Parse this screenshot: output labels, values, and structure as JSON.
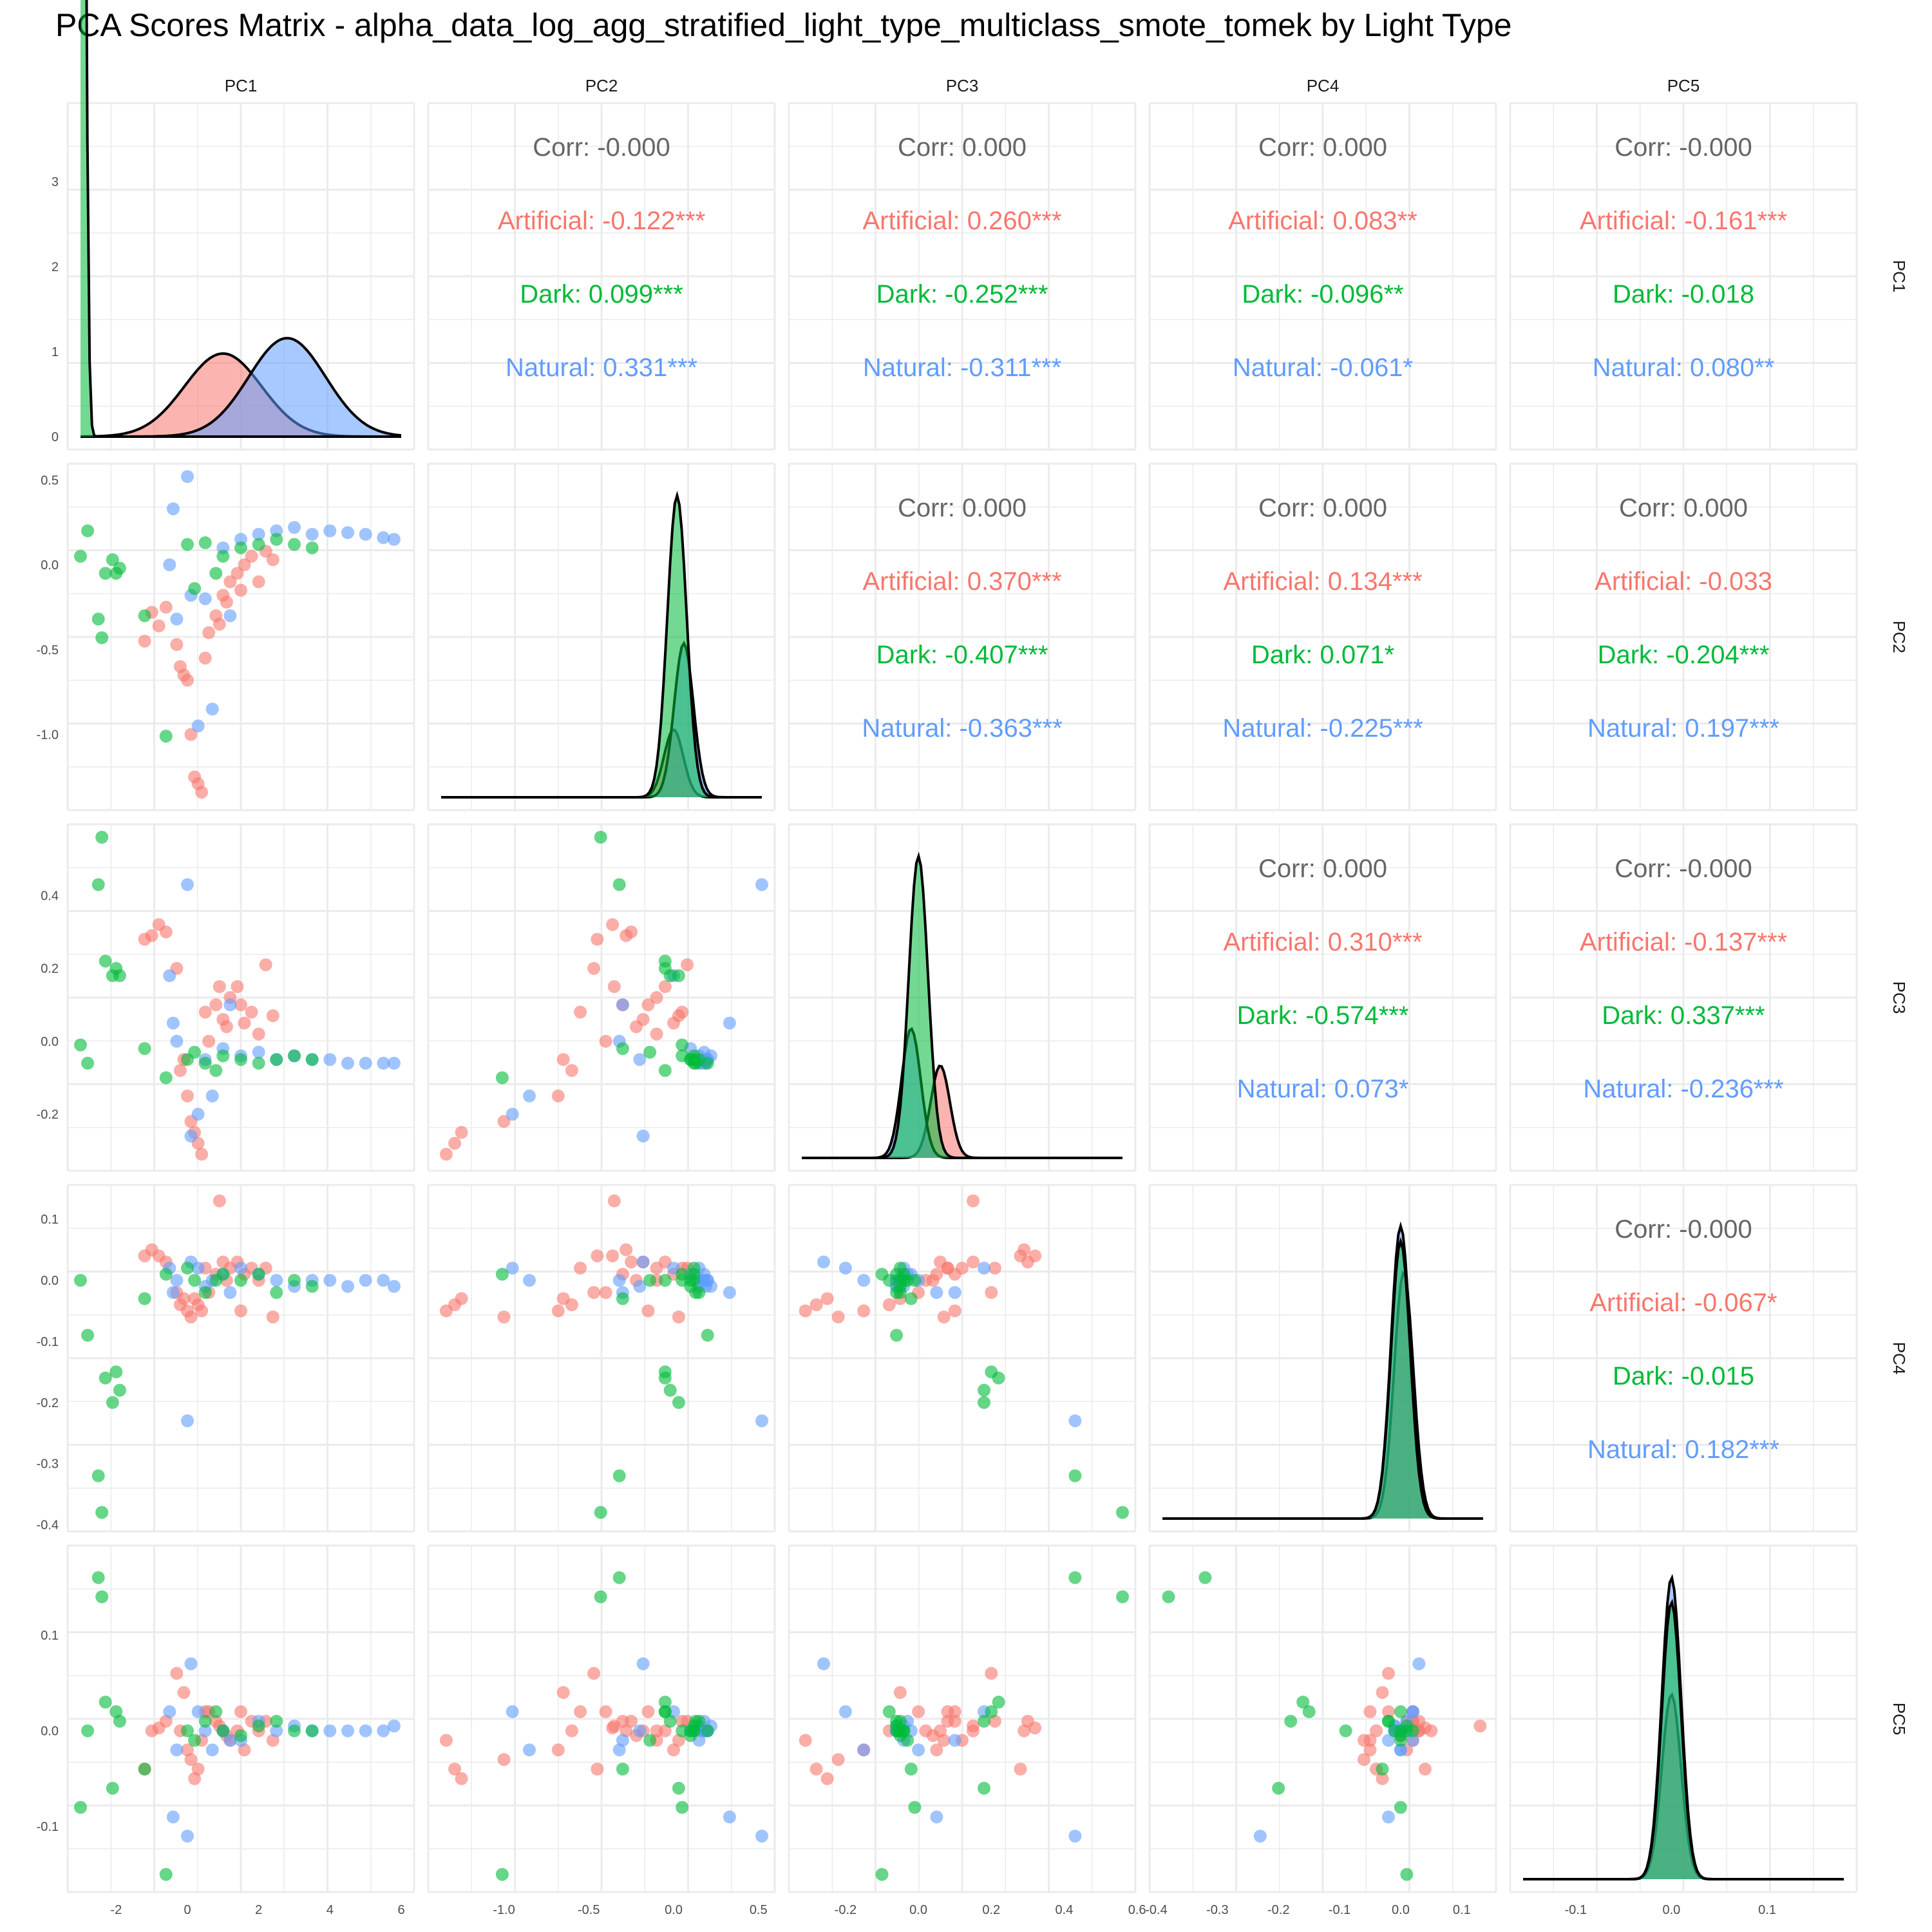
{
  "chart_data": {
    "type": "scatter",
    "title": "PCA Scores Matrix - alpha_data_log_agg_stratified_light_type_multiclass_smote_tomek by Light Type",
    "variables": [
      "PC1",
      "PC2",
      "PC3",
      "PC4",
      "PC5"
    ],
    "groups": [
      {
        "name": "Artificial",
        "color": "#F8766D"
      },
      {
        "name": "Dark",
        "color": "#00BA38"
      },
      {
        "name": "Natural",
        "color": "#619CFF"
      }
    ],
    "overall_color": "#666666",
    "density_line_color": "#000000",
    "axis_ranges": {
      "PC1": [
        -3.0,
        6.0
      ],
      "PC2": [
        -1.37,
        0.52
      ],
      "PC3": [
        -0.32,
        0.56
      ],
      "PC4": [
        -0.39,
        0.135
      ],
      "PC5": [
        -0.155,
        0.18
      ]
    },
    "ticks": {
      "PC1": [
        "-2",
        "0",
        "2",
        "4",
        "6"
      ],
      "PC2": [
        "-1.0",
        "-0.5",
        "0.0",
        "0.5"
      ],
      "PC3": [
        "-0.2",
        "0.0",
        "0.2",
        "0.4",
        "0.6"
      ],
      "PC4": [
        "-0.4",
        "-0.3",
        "-0.2",
        "-0.1",
        "0.0",
        "0.1"
      ],
      "PC5": [
        "-0.1",
        "0.0",
        "0.1"
      ]
    },
    "density_y_ticks": [
      "0",
      "1",
      "2",
      "3"
    ],
    "correlations": [
      {
        "row": "PC1",
        "col": "PC2",
        "lines": [
          {
            "label": "Corr: -0.000",
            "group": "overall"
          },
          {
            "label": "Artificial: -0.122***",
            "group": "Artificial"
          },
          {
            "label": "Dark: 0.099***",
            "group": "Dark"
          },
          {
            "label": "Natural: 0.331***",
            "group": "Natural"
          }
        ]
      },
      {
        "row": "PC1",
        "col": "PC3",
        "lines": [
          {
            "label": "Corr: 0.000",
            "group": "overall"
          },
          {
            "label": "Artificial: 0.260***",
            "group": "Artificial"
          },
          {
            "label": "Dark: -0.252***",
            "group": "Dark"
          },
          {
            "label": "Natural: -0.311***",
            "group": "Natural"
          }
        ]
      },
      {
        "row": "PC1",
        "col": "PC4",
        "lines": [
          {
            "label": "Corr: 0.000",
            "group": "overall"
          },
          {
            "label": "Artificial: 0.083**",
            "group": "Artificial"
          },
          {
            "label": "Dark: -0.096**",
            "group": "Dark"
          },
          {
            "label": "Natural: -0.061*",
            "group": "Natural"
          }
        ]
      },
      {
        "row": "PC1",
        "col": "PC5",
        "lines": [
          {
            "label": "Corr: -0.000",
            "group": "overall"
          },
          {
            "label": "Artificial: -0.161***",
            "group": "Artificial"
          },
          {
            "label": "Dark: -0.018",
            "group": "Dark"
          },
          {
            "label": "Natural: 0.080**",
            "group": "Natural"
          }
        ]
      },
      {
        "row": "PC2",
        "col": "PC3",
        "lines": [
          {
            "label": "Corr: 0.000",
            "group": "overall"
          },
          {
            "label": "Artificial: 0.370***",
            "group": "Artificial"
          },
          {
            "label": "Dark: -0.407***",
            "group": "Dark"
          },
          {
            "label": "Natural: -0.363***",
            "group": "Natural"
          }
        ]
      },
      {
        "row": "PC2",
        "col": "PC4",
        "lines": [
          {
            "label": "Corr: 0.000",
            "group": "overall"
          },
          {
            "label": "Artificial: 0.134***",
            "group": "Artificial"
          },
          {
            "label": "Dark: 0.071*",
            "group": "Dark"
          },
          {
            "label": "Natural: -0.225***",
            "group": "Natural"
          }
        ]
      },
      {
        "row": "PC2",
        "col": "PC5",
        "lines": [
          {
            "label": "Corr: 0.000",
            "group": "overall"
          },
          {
            "label": "Artificial: -0.033",
            "group": "Artificial"
          },
          {
            "label": "Dark: -0.204***",
            "group": "Dark"
          },
          {
            "label": "Natural: 0.197***",
            "group": "Natural"
          }
        ]
      },
      {
        "row": "PC3",
        "col": "PC4",
        "lines": [
          {
            "label": "Corr: 0.000",
            "group": "overall"
          },
          {
            "label": "Artificial: 0.310***",
            "group": "Artificial"
          },
          {
            "label": "Dark: -0.574***",
            "group": "Dark"
          },
          {
            "label": "Natural: 0.073*",
            "group": "Natural"
          }
        ]
      },
      {
        "row": "PC3",
        "col": "PC5",
        "lines": [
          {
            "label": "Corr: -0.000",
            "group": "overall"
          },
          {
            "label": "Artificial: -0.137***",
            "group": "Artificial"
          },
          {
            "label": "Dark: 0.337***",
            "group": "Dark"
          },
          {
            "label": "Natural: -0.236***",
            "group": "Natural"
          }
        ]
      },
      {
        "row": "PC4",
        "col": "PC5",
        "lines": [
          {
            "label": "Corr: -0.000",
            "group": "overall"
          },
          {
            "label": "Artificial: -0.067*",
            "group": "Artificial"
          },
          {
            "label": "Dark: -0.015",
            "group": "Dark"
          },
          {
            "label": "Natural: 0.182***",
            "group": "Natural"
          }
        ]
      }
    ],
    "points": {
      "Artificial": [
        [
          -1.0,
          -0.28,
          0.29,
          0.05,
          0.0
        ],
        [
          -0.8,
          -0.36,
          0.32,
          0.04,
          0.003
        ],
        [
          -0.6,
          -0.25,
          0.3,
          0.03,
          0.01
        ],
        [
          -0.3,
          -0.47,
          0.2,
          -0.02,
          0.06
        ],
        [
          -0.1,
          -0.65,
          -0.05,
          -0.03,
          0.04
        ],
        [
          0.0,
          -0.68,
          -0.15,
          -0.05,
          -0.02
        ],
        [
          0.1,
          -1.0,
          -0.22,
          -0.06,
          -0.03
        ],
        [
          0.2,
          -1.25,
          -0.25,
          -0.03,
          -0.05
        ],
        [
          0.3,
          -1.29,
          -0.28,
          -0.04,
          -0.04
        ],
        [
          0.4,
          -1.34,
          -0.31,
          -0.05,
          -0.01
        ],
        [
          0.5,
          -0.55,
          0.08,
          0.02,
          0.02
        ],
        [
          0.8,
          -0.3,
          0.1,
          0.01,
          0.01
        ],
        [
          1.0,
          -0.18,
          0.06,
          0.03,
          0.0
        ],
        [
          1.2,
          -0.1,
          0.12,
          0.02,
          -0.01
        ],
        [
          1.4,
          -0.05,
          0.15,
          0.03,
          0.0
        ],
        [
          1.6,
          0.0,
          0.05,
          0.01,
          -0.02
        ],
        [
          1.8,
          0.05,
          0.08,
          0.02,
          0.01
        ],
        [
          2.0,
          -0.1,
          0.02,
          0.0,
          0.0
        ],
        [
          2.2,
          0.08,
          0.21,
          0.02,
          0.01
        ],
        [
          2.4,
          0.03,
          0.07,
          -0.06,
          -0.01
        ],
        [
          0.6,
          -0.4,
          0.0,
          -0.02,
          0.02
        ],
        [
          1.1,
          -0.22,
          0.04,
          0.0,
          -0.005
        ],
        [
          -0.2,
          -0.6,
          -0.08,
          -0.04,
          0.0
        ],
        [
          0.9,
          -0.35,
          0.15,
          0.13,
          0.005
        ],
        [
          1.5,
          -0.15,
          0.1,
          -0.05,
          0.02
        ],
        [
          -1.2,
          -0.45,
          0.28,
          0.04,
          -0.04
        ]
      ],
      "Dark": [
        [
          -3.0,
          0.05,
          -0.01,
          0.0,
          -0.08
        ],
        [
          -2.8,
          0.2,
          -0.06,
          -0.09,
          0.0
        ],
        [
          -2.5,
          -0.32,
          0.43,
          -0.32,
          0.16
        ],
        [
          -2.4,
          -0.43,
          0.56,
          -0.38,
          0.14
        ],
        [
          -2.3,
          -0.05,
          0.22,
          -0.16,
          0.03
        ],
        [
          -2.1,
          0.03,
          0.18,
          -0.2,
          -0.06
        ],
        [
          -2.0,
          -0.05,
          0.2,
          -0.15,
          0.02
        ],
        [
          -1.9,
          -0.02,
          0.18,
          -0.18,
          0.01
        ],
        [
          -1.2,
          -0.3,
          -0.02,
          -0.03,
          -0.04
        ],
        [
          -0.6,
          -1.01,
          -0.1,
          0.01,
          -0.15
        ],
        [
          0.0,
          0.12,
          -0.05,
          0.02,
          0.0
        ],
        [
          0.2,
          -0.14,
          -0.03,
          0.0,
          -0.01
        ],
        [
          0.5,
          0.13,
          -0.06,
          -0.02,
          0.01
        ],
        [
          1.0,
          0.05,
          -0.04,
          0.01,
          0.0
        ],
        [
          1.5,
          0.1,
          -0.05,
          0.0,
          -0.005
        ],
        [
          2.0,
          0.12,
          -0.06,
          0.01,
          0.005
        ],
        [
          2.5,
          0.15,
          -0.05,
          -0.02,
          0.01
        ],
        [
          3.0,
          0.12,
          -0.04,
          0.0,
          0.0
        ],
        [
          3.5,
          0.1,
          -0.05,
          -0.01,
          0.0
        ],
        [
          0.8,
          -0.05,
          -0.08,
          0.0,
          0.02
        ]
      ],
      "Natural": [
        [
          -0.3,
          -0.32,
          0.0,
          0.0,
          -0.02
        ],
        [
          0.0,
          0.52,
          0.43,
          -0.23,
          -0.11
        ],
        [
          0.1,
          -0.18,
          -0.26,
          0.03,
          0.07
        ],
        [
          0.5,
          -0.2,
          -0.05,
          -0.01,
          0.0
        ],
        [
          1.0,
          0.1,
          -0.02,
          0.01,
          0.0
        ],
        [
          1.5,
          0.15,
          -0.04,
          0.02,
          -0.01
        ],
        [
          2.0,
          0.18,
          -0.03,
          0.01,
          0.01
        ],
        [
          2.5,
          0.2,
          -0.05,
          0.0,
          0.0
        ],
        [
          3.0,
          0.22,
          -0.04,
          -0.01,
          0.005
        ],
        [
          3.5,
          0.18,
          -0.05,
          0.0,
          0.0
        ],
        [
          4.0,
          0.2,
          -0.05,
          0.0,
          0.0
        ],
        [
          4.5,
          0.19,
          -0.06,
          -0.01,
          0.0
        ],
        [
          5.0,
          0.18,
          -0.06,
          0.0,
          0.0
        ],
        [
          5.5,
          0.16,
          -0.06,
          0.0,
          0.0
        ],
        [
          5.8,
          0.15,
          -0.06,
          -0.01,
          0.005
        ],
        [
          -0.4,
          0.33,
          0.05,
          -0.02,
          -0.09
        ],
        [
          0.3,
          -0.95,
          -0.2,
          0.02,
          0.02
        ],
        [
          0.7,
          -0.85,
          -0.15,
          0.0,
          -0.02
        ],
        [
          -0.5,
          0.0,
          0.18,
          0.02,
          0.02
        ],
        [
          1.2,
          -0.3,
          0.1,
          -0.02,
          -0.01
        ]
      ]
    },
    "density_peaks": {
      "PC1": {
        "Artificial": {
          "mode": 1.0,
          "height": 0.27
        },
        "Dark": {
          "mode": -2.95,
          "height": 3.4
        },
        "Natural": {
          "mode": 2.8,
          "height": 0.32
        },
        "overall_height": 3.62
      },
      "PC2": {
        "Artificial": {
          "mode": 0.0,
          "height": 0.22
        },
        "Dark": {
          "mode": 0.02,
          "height": 0.98
        },
        "Natural": {
          "mode": 0.06,
          "height": 0.5
        }
      },
      "PC3": {
        "Artificial": {
          "mode": 0.06,
          "height": 0.3
        },
        "Dark": {
          "mode": 0.0,
          "height": 0.98
        },
        "Natural": {
          "mode": -0.02,
          "height": 0.42
        }
      },
      "PC4": {
        "Artificial": {
          "mode": 0.005,
          "height": 0.8
        },
        "Dark": {
          "mode": 0.0,
          "height": 0.9
        },
        "Natural": {
          "mode": 0.0,
          "height": 0.95
        }
      },
      "PC5": {
        "Artificial": {
          "mode": 0.0,
          "height": 0.6
        },
        "Dark": {
          "mode": 0.0,
          "height": 0.9
        },
        "Natural": {
          "mode": 0.0,
          "height": 0.98
        }
      }
    }
  }
}
